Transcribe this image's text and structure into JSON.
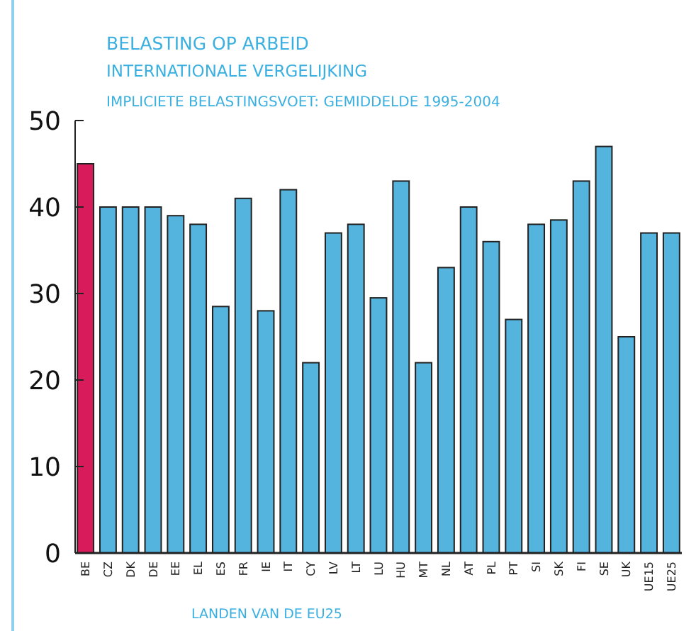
{
  "chart_data": {
    "type": "bar",
    "title": "BELASTING OP ARBEID",
    "subtitle": "INTERNATIONALE VERGELIJKING",
    "annotations": [
      "IMPLICIETE BELASTINGSVOET: GEMIDDELDE 1995-2004"
    ],
    "xlabel": "LANDEN VAN DE EU25",
    "categories": [
      "BE",
      "CZ",
      "DK",
      "DE",
      "EE",
      "EL",
      "ES",
      "FR",
      "IE",
      "IT",
      "CY",
      "LV",
      "LT",
      "LU",
      "HU",
      "MT",
      "NL",
      "AT",
      "PL",
      "PT",
      "SI",
      "SK",
      "FI",
      "SE",
      "UK",
      "UE15",
      "UE25"
    ],
    "values": [
      45,
      40,
      40,
      40,
      39,
      38,
      28.5,
      41,
      28,
      42,
      22,
      37,
      38,
      29.5,
      43,
      22,
      33,
      40,
      36,
      27,
      38,
      38.5,
      43,
      47,
      25,
      37,
      37
    ],
    "colors": [
      "#d81b5a",
      "#55b4de",
      "#55b4de",
      "#55b4de",
      "#55b4de",
      "#55b4de",
      "#55b4de",
      "#55b4de",
      "#55b4de",
      "#55b4de",
      "#55b4de",
      "#55b4de",
      "#55b4de",
      "#55b4de",
      "#55b4de",
      "#55b4de",
      "#55b4de",
      "#55b4de",
      "#55b4de",
      "#55b4de",
      "#55b4de",
      "#55b4de",
      "#55b4de",
      "#55b4de",
      "#55b4de",
      "#55b4de",
      "#55b4de"
    ],
    "ylim": [
      0,
      50
    ],
    "yticks": [
      0,
      10,
      20,
      30,
      40,
      50
    ],
    "grid": false
  }
}
